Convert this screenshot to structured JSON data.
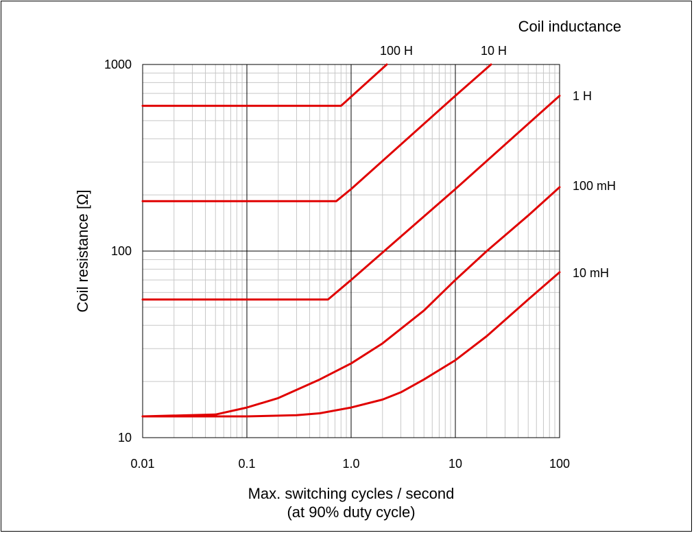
{
  "chart_data": {
    "type": "line",
    "xlabel_line1": "Max. switching cycles / second",
    "xlabel_line2": "(at 90% duty cycle)",
    "ylabel": "Coil resistance [Ω]",
    "legend_title": "Coil inductance",
    "x_scale": "log",
    "y_scale": "log",
    "xlim": [
      0.01,
      100
    ],
    "ylim": [
      10,
      1000
    ],
    "x_ticks": [
      0.01,
      0.1,
      1,
      10,
      100
    ],
    "x_tick_labels": [
      "0.01",
      "0.1",
      "1.0",
      "10",
      "100"
    ],
    "y_ticks": [
      10,
      100,
      1000
    ],
    "y_tick_labels": [
      "10",
      "100",
      "1000"
    ],
    "grid": true,
    "line_color": "#e00000",
    "series": [
      {
        "name": "100 H",
        "points": [
          [
            0.01,
            600
          ],
          [
            0.8,
            600
          ],
          [
            2.2,
            1000
          ]
        ]
      },
      {
        "name": "10 H",
        "points": [
          [
            0.01,
            185
          ],
          [
            0.72,
            185
          ],
          [
            1.0,
            215
          ],
          [
            10,
            680
          ],
          [
            22,
            1000
          ]
        ]
      },
      {
        "name": "1 H",
        "points": [
          [
            0.01,
            55
          ],
          [
            0.6,
            55
          ],
          [
            1.0,
            70
          ],
          [
            10,
            215
          ],
          [
            100,
            680
          ]
        ]
      },
      {
        "name": "100 mH",
        "points": [
          [
            0.01,
            13
          ],
          [
            0.05,
            13.3
          ],
          [
            0.1,
            14.5
          ],
          [
            0.2,
            16.3
          ],
          [
            0.5,
            20.5
          ],
          [
            1.0,
            25
          ],
          [
            2,
            32
          ],
          [
            5,
            48
          ],
          [
            10,
            70
          ],
          [
            20,
            100
          ],
          [
            50,
            155
          ],
          [
            100,
            220
          ]
        ]
      },
      {
        "name": "10 mH",
        "points": [
          [
            0.01,
            13
          ],
          [
            0.1,
            13
          ],
          [
            0.3,
            13.2
          ],
          [
            0.5,
            13.5
          ],
          [
            1.0,
            14.5
          ],
          [
            2,
            16
          ],
          [
            3,
            17.5
          ],
          [
            5,
            20.5
          ],
          [
            10,
            26
          ],
          [
            20,
            35
          ],
          [
            50,
            55
          ],
          [
            100,
            77
          ]
        ]
      }
    ],
    "series_labels": [
      "100 H",
      "10 H",
      "1 H",
      "100 mH",
      "10 mH"
    ]
  }
}
